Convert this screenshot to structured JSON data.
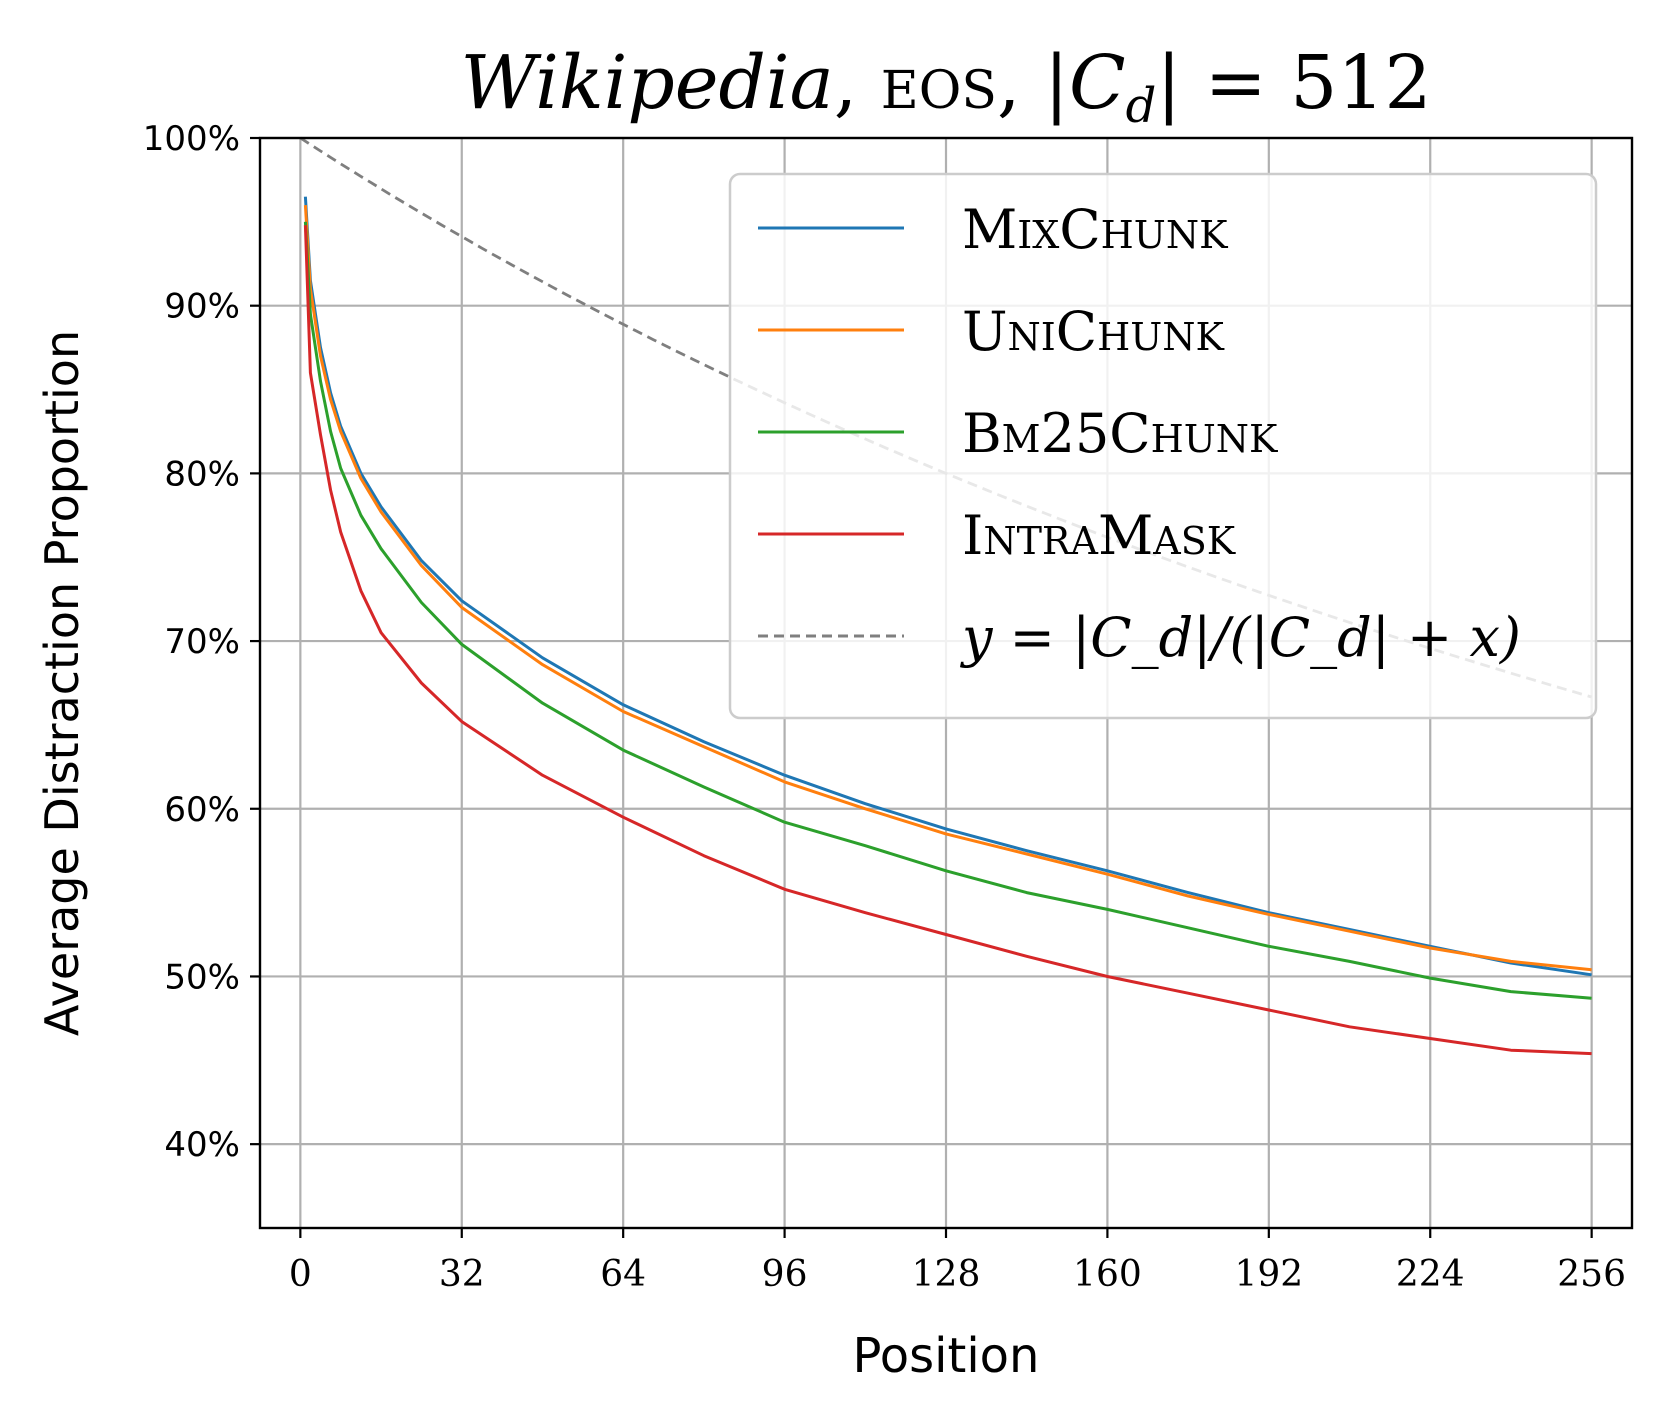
{
  "chart_data": {
    "type": "line",
    "title": {
      "italic": "Wikipedia",
      "sep1": ", ",
      "smallcaps": "eos",
      "sep2": ", ",
      "formula": "|C",
      "formula_sub": "d",
      "formula_end": "| = 512"
    },
    "xlabel": "Position",
    "ylabel": "Average Distraction Proportion",
    "xlim": [
      -8,
      264
    ],
    "ylim": [
      35,
      100
    ],
    "x_ticks": [
      0,
      32,
      64,
      96,
      128,
      160,
      192,
      224,
      256
    ],
    "x_tick_labels": [
      "0",
      "32",
      "64",
      "96",
      "128",
      "160",
      "192",
      "224",
      "256"
    ],
    "y_ticks": [
      40,
      50,
      60,
      70,
      80,
      90,
      100
    ],
    "y_tick_labels": [
      "40%",
      "50%",
      "60%",
      "70%",
      "80%",
      "90%",
      "100%"
    ],
    "grid": true,
    "legend_position": "top-right",
    "x": [
      1,
      2,
      4,
      6,
      8,
      12,
      16,
      24,
      32,
      48,
      64,
      80,
      96,
      112,
      128,
      144,
      160,
      176,
      192,
      208,
      224,
      240,
      256
    ],
    "series": [
      {
        "name": "MixChunk",
        "color": "#1f77b4",
        "values": [
          96.5,
          91.5,
          87.5,
          84.8,
          82.8,
          80.0,
          78.0,
          74.8,
          72.4,
          69.0,
          66.2,
          64.0,
          62.0,
          60.3,
          58.8,
          57.5,
          56.3,
          55.0,
          53.8,
          52.8,
          51.8,
          50.8,
          50.1
        ]
      },
      {
        "name": "UniChunk",
        "color": "#ff7f0e",
        "values": [
          96.0,
          91.0,
          87.0,
          84.4,
          82.5,
          79.7,
          77.7,
          74.5,
          72.0,
          68.6,
          65.8,
          63.7,
          61.6,
          60.0,
          58.5,
          57.3,
          56.1,
          54.8,
          53.7,
          52.7,
          51.7,
          50.9,
          50.4
        ]
      },
      {
        "name": "Bm25Chunk",
        "color": "#2ca02c",
        "values": [
          95.0,
          89.5,
          85.5,
          82.5,
          80.3,
          77.5,
          75.5,
          72.3,
          69.8,
          66.3,
          63.5,
          61.3,
          59.2,
          57.8,
          56.3,
          55.0,
          54.0,
          52.9,
          51.8,
          50.9,
          49.9,
          49.1,
          48.7
        ]
      },
      {
        "name": "IntraMask",
        "color": "#d62728",
        "values": [
          94.8,
          86.0,
          82.3,
          79.0,
          76.5,
          73.0,
          70.5,
          67.5,
          65.2,
          62.0,
          59.5,
          57.2,
          55.2,
          53.8,
          52.5,
          51.2,
          50.0,
          49.0,
          48.0,
          47.0,
          46.3,
          45.6,
          45.4
        ]
      }
    ],
    "reference_line": {
      "name": "y = |C_d|/(|C_d| + x)",
      "color": "#7f7f7f",
      "style": "dashed",
      "c_d": 512
    },
    "legend": [
      {
        "label": "MixChunk",
        "color": "#1f77b4",
        "style": "solid"
      },
      {
        "label": "UniChunk",
        "color": "#ff7f0e",
        "style": "solid"
      },
      {
        "label": "Bm25Chunk",
        "color": "#2ca02c",
        "style": "solid"
      },
      {
        "label": "IntraMask",
        "color": "#d62728",
        "style": "solid"
      },
      {
        "label": "y = |C_d|/(|C_d| + x)",
        "color": "#7f7f7f",
        "style": "dashed"
      }
    ]
  }
}
